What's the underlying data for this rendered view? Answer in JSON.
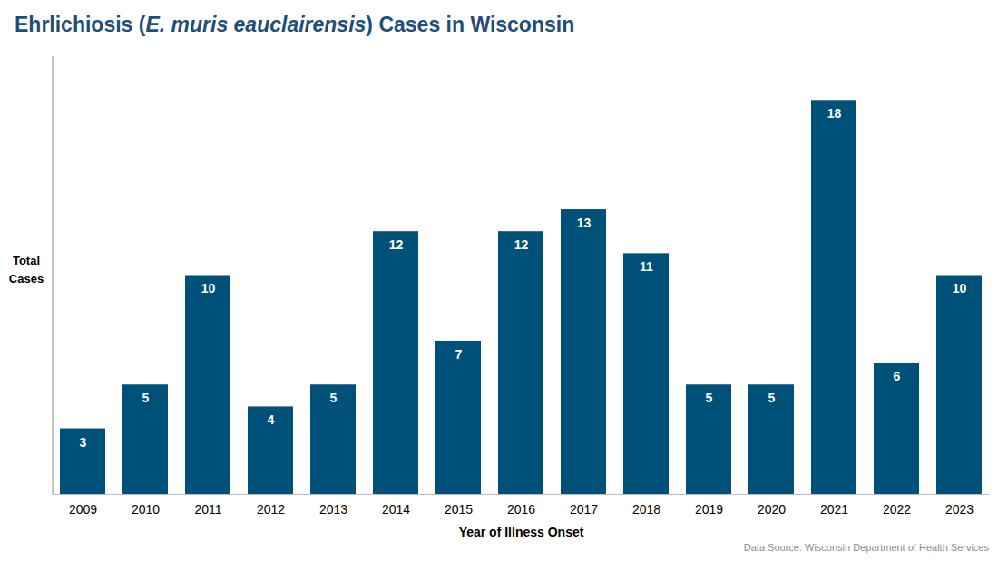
{
  "chart_data": {
    "type": "bar",
    "title": "Ehrlichiosis (E. muris eauclairensis) Cases in Wisconsin",
    "source": "Data Source: Wisconsin Department of Health Services",
    "xlabel": "Year of Illness Onset",
    "ylabel": "Total Cases",
    "categories": [
      "2009",
      "2010",
      "2011",
      "2012",
      "2013",
      "2014",
      "2015",
      "2016",
      "2017",
      "2018",
      "2019",
      "2020",
      "2021",
      "2022",
      "2023"
    ],
    "values": [
      3,
      5,
      10,
      4,
      5,
      12,
      7,
      12,
      13,
      11,
      5,
      5,
      18,
      6,
      10
    ],
    "color": "#00517a",
    "ylim": [
      0,
      20
    ],
    "grid": false,
    "data_labels": true,
    "tick_labels": "x"
  }
}
